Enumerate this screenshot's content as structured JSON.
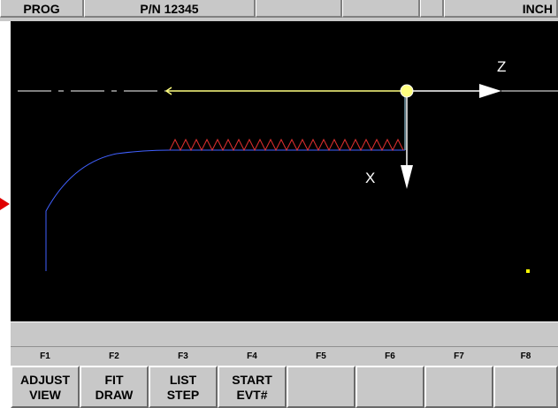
{
  "topbar": {
    "mode": "PROG",
    "part_number": "P/N 12345",
    "slot3": "",
    "slot4": "",
    "slot5": "",
    "units": "INCH"
  },
  "axes": {
    "z_label": "Z",
    "x_label": "X"
  },
  "colors": {
    "background": "#000000",
    "axis": "#ffffff",
    "toolpath": "#ffff80",
    "profile": "#4060ff",
    "thread": "#e03030",
    "tool_marker": "#ffff00",
    "panel": "#c8c8c8",
    "indicator": "#e00000"
  },
  "fkeys": [
    "F1",
    "F2",
    "F3",
    "F4",
    "F5",
    "F6",
    "F7",
    "F8"
  ],
  "softkeys": [
    {
      "line1": "ADJUST",
      "line2": "VIEW"
    },
    {
      "line1": "FIT",
      "line2": "DRAW"
    },
    {
      "line1": "LIST",
      "line2": "STEP"
    },
    {
      "line1": "START",
      "line2": "EVT#"
    },
    {
      "line1": "",
      "line2": ""
    },
    {
      "line1": "",
      "line2": ""
    },
    {
      "line1": "",
      "line2": ""
    },
    {
      "line1": "",
      "line2": ""
    }
  ]
}
